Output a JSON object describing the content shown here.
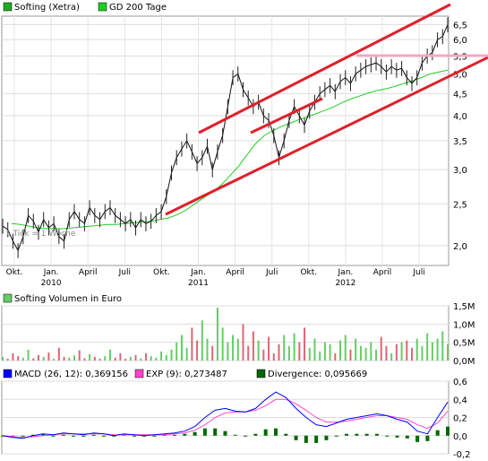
{
  "chart_data": [
    {
      "type": "line",
      "title": "",
      "legend_placement": "top-left",
      "legend": [
        {
          "label": "Softing (Xetra)",
          "color": "#22aa22"
        },
        {
          "label": "GD 200 Tage",
          "color": "#22cc22"
        }
      ],
      "scale": "log",
      "ylim": [
        1.8,
        6.8
      ],
      "yticks": [
        "6,5",
        "6,0",
        "5,5",
        "5,0",
        "4,5",
        "4,0",
        "3,5",
        "3,0",
        "2,5",
        "2,0"
      ],
      "ytick_values": [
        6.5,
        6.0,
        5.5,
        5.0,
        4.5,
        4.0,
        3.5,
        3.0,
        2.5,
        2.0
      ],
      "xticks": [
        "Okt.",
        "Jan.",
        "April",
        "Juli",
        "Okt.",
        "Jan.",
        "April",
        "Juli",
        "Okt.",
        "Jan.",
        "April",
        "Juli"
      ],
      "year_labels": [
        {
          "label": "2010",
          "under_tick": 1
        },
        {
          "label": "2011",
          "under_tick": 5
        },
        {
          "label": "2012",
          "under_tick": 9
        }
      ],
      "note": "1 Tick = 1 Woche",
      "grid": true,
      "price_points": [
        2.22,
        2.18,
        2.05,
        1.95,
        2.1,
        2.35,
        2.28,
        2.15,
        2.3,
        2.2,
        2.25,
        2.1,
        2.05,
        2.3,
        2.4,
        2.3,
        2.25,
        2.45,
        2.35,
        2.3,
        2.4,
        2.45,
        2.35,
        2.3,
        2.25,
        2.3,
        2.2,
        2.3,
        2.25,
        2.28,
        2.35,
        2.4,
        2.6,
        2.95,
        3.2,
        3.35,
        3.5,
        3.3,
        3.1,
        3.2,
        3.4,
        3.0,
        3.3,
        3.6,
        4.2,
        4.9,
        5.0,
        4.6,
        4.4,
        4.2,
        4.3,
        4.0,
        3.9,
        3.6,
        3.2,
        3.5,
        3.9,
        4.2,
        4.0,
        3.8,
        4.1,
        4.3,
        4.5,
        4.6,
        4.7,
        4.55,
        4.8,
        4.9,
        4.75,
        5.0,
        5.1,
        5.2,
        5.25,
        5.3,
        5.2,
        5.05,
        5.2,
        5.1,
        5.15,
        4.9,
        4.75,
        4.9,
        5.3,
        5.5,
        5.6,
        6.0,
        6.1,
        6.5
      ],
      "ma200_points": [
        2.25,
        2.24,
        2.22,
        2.2,
        2.19,
        2.19,
        2.19,
        2.2,
        2.21,
        2.22,
        2.23,
        2.24,
        2.24,
        2.25,
        2.26,
        2.27,
        2.28,
        2.3,
        2.32,
        2.36,
        2.42,
        2.5,
        2.58,
        2.66,
        2.76,
        2.9,
        3.05,
        3.25,
        3.45,
        3.6,
        3.7,
        3.78,
        3.85,
        3.92,
        3.98,
        4.05,
        4.12,
        4.2,
        4.3,
        4.38,
        4.45,
        4.52,
        4.58,
        4.62,
        4.68,
        4.75,
        4.82,
        4.9,
        5.0,
        5.05,
        5.1
      ]
    },
    {
      "type": "bar",
      "legend": [
        {
          "label": "Softing Volumen in Euro",
          "color": "#66cc66"
        }
      ],
      "ylim": [
        0,
        1.5
      ],
      "yticks": [
        "1,5M",
        "1,0M",
        "0,5M",
        "0,0M"
      ],
      "ytick_values": [
        1.5,
        1.0,
        0.5,
        0.0
      ],
      "values": [
        0.1,
        0.05,
        0.2,
        0.12,
        0.08,
        0.3,
        0.06,
        0.15,
        0.1,
        0.22,
        0.05,
        0.35,
        0.1,
        0.08,
        0.14,
        0.28,
        0.06,
        0.18,
        0.1,
        0.05,
        0.12,
        0.3,
        0.08,
        0.2,
        0.05,
        0.1,
        0.15,
        0.06,
        0.2,
        0.12,
        0.08,
        0.25,
        0.15,
        0.3,
        0.5,
        0.7,
        0.35,
        0.9,
        0.55,
        1.1,
        0.6,
        0.4,
        1.45,
        0.9,
        0.5,
        0.7,
        0.6,
        1.0,
        0.4,
        0.8,
        0.55,
        0.3,
        0.65,
        0.2,
        0.45,
        0.7,
        0.4,
        0.75,
        0.5,
        0.9,
        0.35,
        0.6,
        0.25,
        0.5,
        0.45,
        0.2,
        0.55,
        0.7,
        0.3,
        0.6,
        0.4,
        0.35,
        0.5,
        0.3,
        0.65,
        0.4,
        0.2,
        0.45,
        0.5,
        0.55,
        0.35,
        0.6,
        0.4,
        0.75,
        0.5,
        0.6,
        0.8,
        0.45
      ]
    },
    {
      "type": "line",
      "legend": [
        {
          "label": "MACD (26, 12): 0,369156",
          "color": "#0000ff"
        },
        {
          "label": "EXP (9): 0,273487",
          "color": "#ff44cc"
        },
        {
          "label": "Divergence: 0,095669",
          "color": "#006600"
        }
      ],
      "ylim": [
        -0.2,
        0.6
      ],
      "yticks": [
        "0,6",
        "0,4",
        "0,2",
        "0,0",
        "-0,2"
      ],
      "ytick_values": [
        0.6,
        0.4,
        0.2,
        0.0,
        -0.2
      ],
      "macd": [
        0.0,
        -0.02,
        -0.03,
        0.0,
        0.02,
        0.01,
        0.03,
        0.02,
        0.01,
        0.03,
        0.02,
        0.0,
        0.02,
        0.01,
        0.0,
        0.01,
        0.02,
        0.03,
        0.05,
        0.1,
        0.2,
        0.28,
        0.3,
        0.27,
        0.26,
        0.3,
        0.4,
        0.48,
        0.42,
        0.3,
        0.2,
        0.12,
        0.1,
        0.14,
        0.18,
        0.2,
        0.22,
        0.24,
        0.22,
        0.18,
        0.15,
        0.05,
        0.02,
        0.2,
        0.37
      ],
      "exp": [
        0.0,
        -0.01,
        -0.02,
        -0.01,
        0.0,
        0.01,
        0.02,
        0.02,
        0.02,
        0.02,
        0.02,
        0.01,
        0.01,
        0.01,
        0.01,
        0.01,
        0.01,
        0.02,
        0.03,
        0.06,
        0.12,
        0.2,
        0.25,
        0.26,
        0.26,
        0.28,
        0.33,
        0.4,
        0.4,
        0.35,
        0.28,
        0.2,
        0.15,
        0.15,
        0.16,
        0.18,
        0.2,
        0.22,
        0.22,
        0.2,
        0.18,
        0.12,
        0.08,
        0.14,
        0.27
      ],
      "divergence": [
        0.0,
        -0.01,
        -0.01,
        0.01,
        0.02,
        0.0,
        0.01,
        0.0,
        -0.01,
        0.01,
        0.0,
        -0.01,
        0.01,
        0.0,
        -0.01,
        0.0,
        0.01,
        0.01,
        0.02,
        0.04,
        0.08,
        0.08,
        0.05,
        0.01,
        0.0,
        0.02,
        0.07,
        0.08,
        0.02,
        -0.05,
        -0.08,
        -0.08,
        -0.05,
        -0.01,
        0.02,
        0.02,
        0.02,
        0.02,
        0.0,
        -0.02,
        -0.03,
        -0.07,
        -0.06,
        0.06,
        0.1
      ]
    }
  ]
}
